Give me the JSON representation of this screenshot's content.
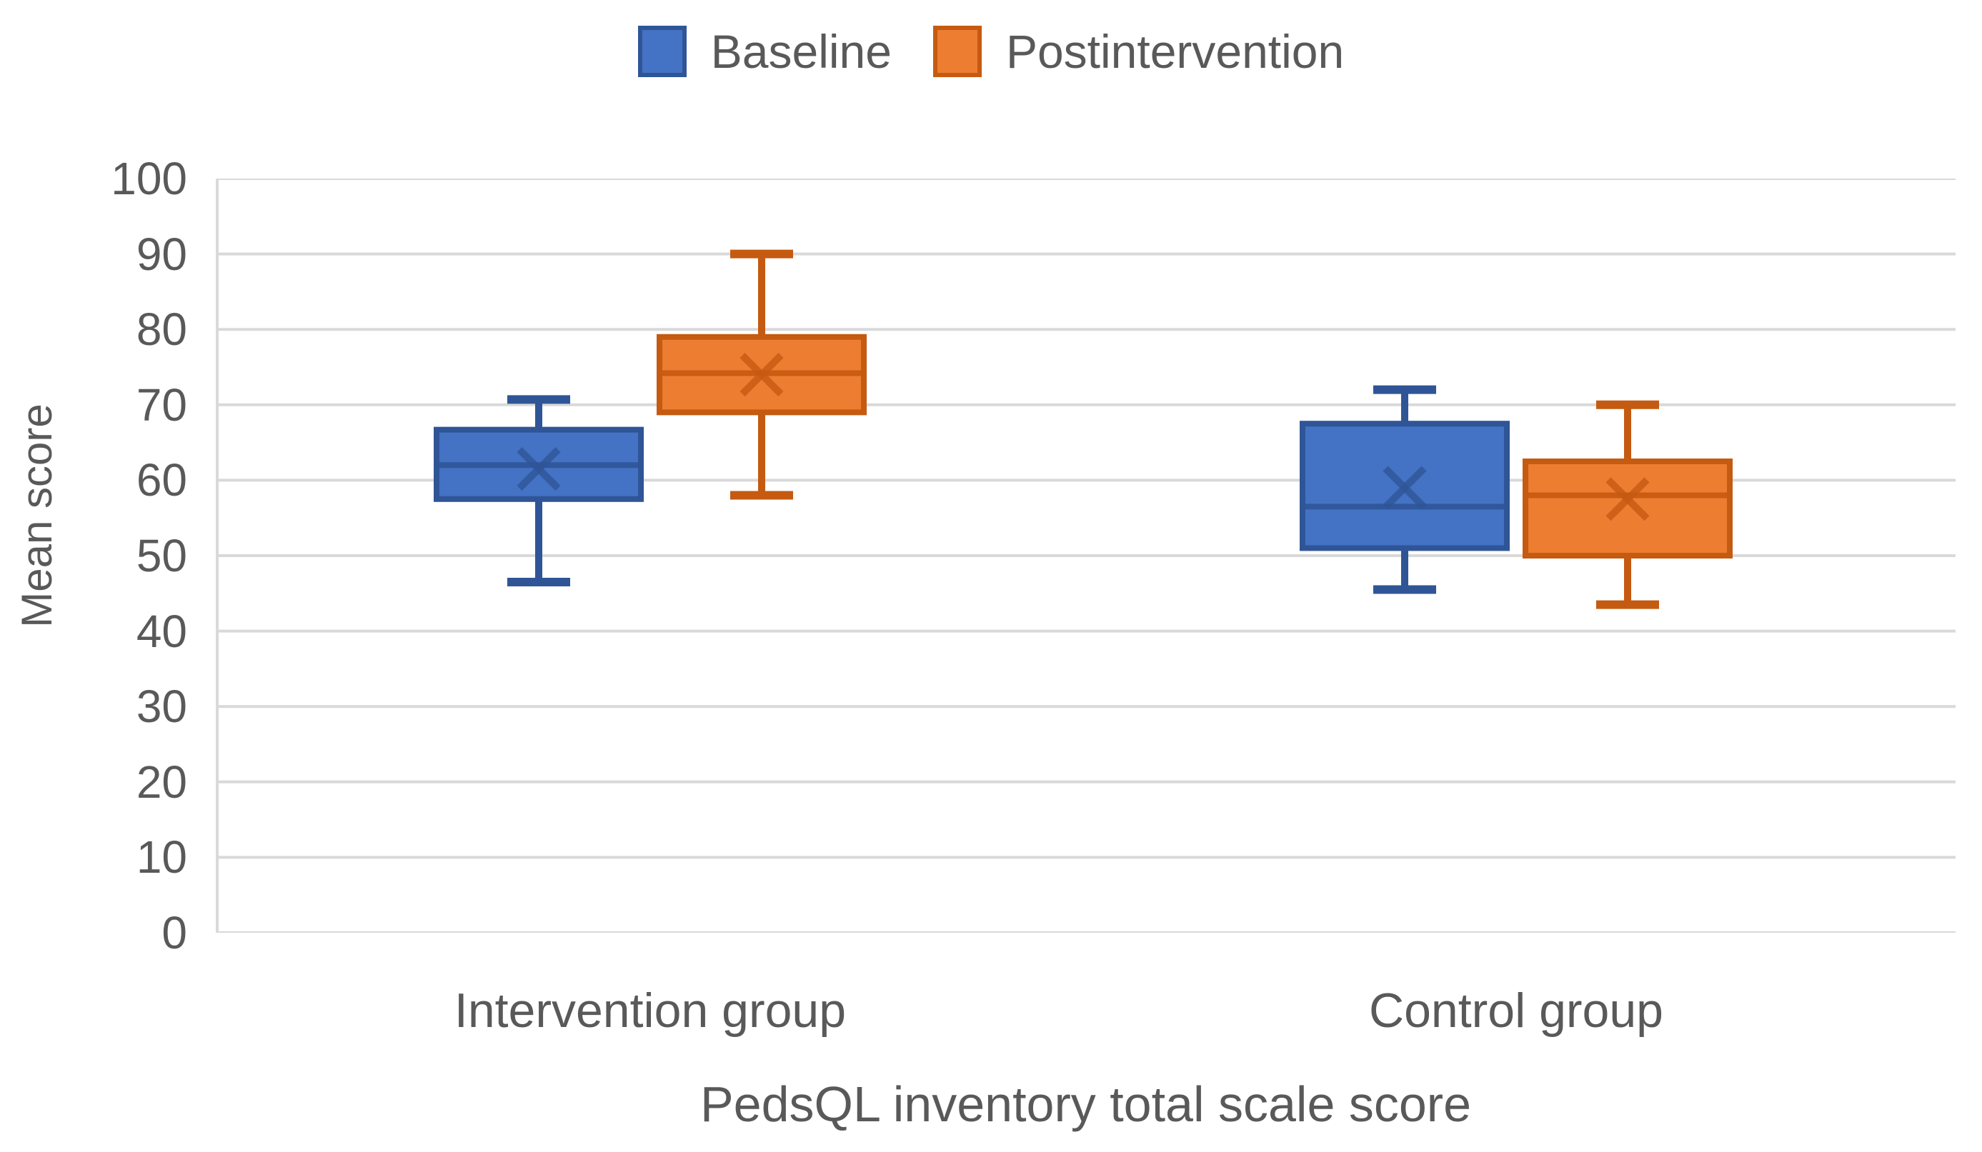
{
  "chart_data": {
    "type": "boxplot",
    "legend_position": "top",
    "grid": "horizontal",
    "ylabel": "Mean score",
    "xlabel": "PedsQL inventory total scale score",
    "ylim": [
      0,
      100
    ],
    "yticks": [
      0,
      10,
      20,
      30,
      40,
      50,
      60,
      70,
      80,
      90,
      100
    ],
    "legend": [
      {
        "label": "Baseline",
        "fill": "#4472C4",
        "border": "#2F5597"
      },
      {
        "label": "Postintervention",
        "fill": "#ED7D31",
        "border": "#C55A11"
      }
    ],
    "groups": [
      {
        "label": "Intervention group",
        "boxes": [
          {
            "series": "Baseline",
            "whisker_low": 46.5,
            "q1": 57.5,
            "median": 62,
            "mean": 61.5,
            "q3": 66.7,
            "whisker_high": 70.7
          },
          {
            "series": "Postintervention",
            "whisker_low": 58,
            "q1": 69,
            "median": 74.2,
            "mean": 74,
            "q3": 79,
            "whisker_high": 90
          }
        ]
      },
      {
        "label": "Control group",
        "boxes": [
          {
            "series": "Baseline",
            "whisker_low": 45.5,
            "q1": 51,
            "median": 56.5,
            "mean": 59,
            "q3": 67.5,
            "whisker_high": 72
          },
          {
            "series": "Postintervention",
            "whisker_low": 43.5,
            "q1": 50,
            "median": 58,
            "mean": 57.5,
            "q3": 62.5,
            "whisker_high": 70
          }
        ]
      }
    ],
    "colors": {
      "gridline": "#D9D9D9",
      "axis_line": "#D9D9D9",
      "text": "#595959"
    }
  }
}
